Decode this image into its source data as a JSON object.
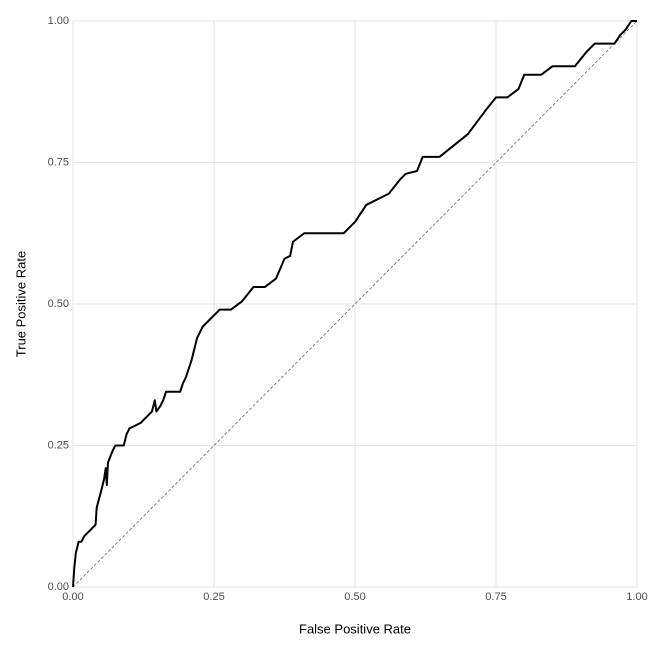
{
  "chart_data": {
    "type": "line",
    "xlabel": "False Positive Rate",
    "ylabel": "True Positive Rate",
    "xlim": [
      0,
      1
    ],
    "ylim": [
      0,
      1
    ],
    "xticks": [
      {
        "value": 0,
        "label": "0.00"
      },
      {
        "value": 0.25,
        "label": "0.25"
      },
      {
        "value": 0.5,
        "label": "0.50"
      },
      {
        "value": 0.75,
        "label": "0.75"
      },
      {
        "value": 1,
        "label": "1.00"
      }
    ],
    "yticks": [
      {
        "value": 0,
        "label": "0.00"
      },
      {
        "value": 0.25,
        "label": "0.25"
      },
      {
        "value": 0.5,
        "label": "0.50"
      },
      {
        "value": 0.75,
        "label": "0.75"
      },
      {
        "value": 1,
        "label": "1.00"
      }
    ],
    "grid": true,
    "series": [
      {
        "color": "#000000",
        "dashed": false,
        "x": [
          0,
          0.002,
          0.005,
          0.01,
          0.015,
          0.02,
          0.03,
          0.04,
          0.042,
          0.05,
          0.055,
          0.058,
          0.06,
          0.062,
          0.07,
          0.075,
          0.09,
          0.095,
          0.1,
          0.12,
          0.13,
          0.14,
          0.145,
          0.148,
          0.155,
          0.16,
          0.165,
          0.19,
          0.195,
          0.2,
          0.21,
          0.22,
          0.23,
          0.25,
          0.26,
          0.28,
          0.3,
          0.32,
          0.34,
          0.36,
          0.375,
          0.385,
          0.39,
          0.41,
          0.48,
          0.5,
          0.52,
          0.54,
          0.56,
          0.58,
          0.59,
          0.61,
          0.62,
          0.65,
          0.7,
          0.73,
          0.75,
          0.77,
          0.79,
          0.8,
          0.83,
          0.85,
          0.89,
          0.91,
          0.925,
          0.96,
          0.97,
          0.98,
          0.99,
          1
        ],
        "values": [
          0,
          0.03,
          0.06,
          0.08,
          0.08,
          0.09,
          0.1,
          0.11,
          0.14,
          0.17,
          0.19,
          0.21,
          0.18,
          0.22,
          0.24,
          0.25,
          0.25,
          0.27,
          0.28,
          0.29,
          0.3,
          0.31,
          0.33,
          0.31,
          0.32,
          0.33,
          0.345,
          0.345,
          0.36,
          0.37,
          0.4,
          0.44,
          0.46,
          0.48,
          0.49,
          0.49,
          0.505,
          0.53,
          0.53,
          0.545,
          0.58,
          0.585,
          0.61,
          0.625,
          0.625,
          0.645,
          0.675,
          0.685,
          0.695,
          0.72,
          0.73,
          0.735,
          0.76,
          0.76,
          0.8,
          0.84,
          0.865,
          0.865,
          0.88,
          0.905,
          0.905,
          0.92,
          0.92,
          0.945,
          0.96,
          0.96,
          0.975,
          0.985,
          1,
          1
        ]
      },
      {
        "color": "#666666",
        "dashed": true,
        "x": [
          0,
          1
        ],
        "values": [
          0,
          1
        ]
      }
    ]
  }
}
